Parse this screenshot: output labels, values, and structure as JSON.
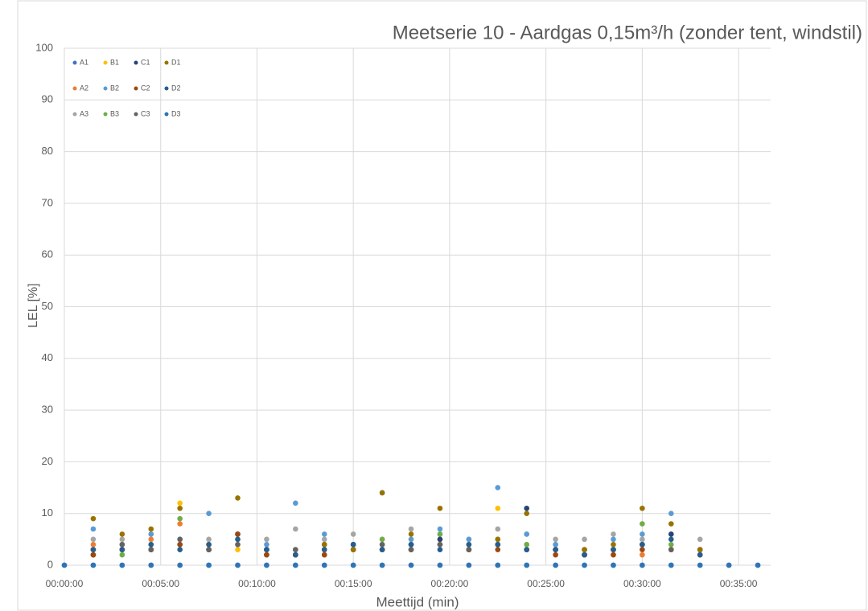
{
  "chart_data": {
    "type": "scatter",
    "title": "Meetserie 10 - Aardgas 0,15m³/h (zonder tent, windstil)",
    "x_label": "Meettijd (min)",
    "y_label": "LEL [%]",
    "x": [
      0,
      90,
      180,
      270,
      360,
      450,
      540,
      630,
      720,
      810,
      900,
      990,
      1080,
      1170,
      1260,
      1350,
      1440,
      1530,
      1620,
      1710,
      1800,
      1890,
      1980,
      2070,
      2160
    ],
    "xlim": [
      0,
      2200
    ],
    "xticks": [
      {
        "value": 0,
        "label": "00:00:00"
      },
      {
        "value": 300,
        "label": "00:05:00"
      },
      {
        "value": 600,
        "label": "00:10:00"
      },
      {
        "value": 900,
        "label": "00:15:00"
      },
      {
        "value": 1200,
        "label": "00:20:00"
      },
      {
        "value": 1500,
        "label": "00:25:00"
      },
      {
        "value": 1800,
        "label": "00:30:00"
      },
      {
        "value": 2100,
        "label": "00:35:00"
      }
    ],
    "ylim": [
      0,
      100
    ],
    "yticks": [
      0,
      10,
      20,
      30,
      40,
      50,
      60,
      70,
      80,
      90,
      100
    ],
    "grid": true,
    "legend": "upper left",
    "series": [
      {
        "name": "A1",
        "color": "#4472c4",
        "values": [
          0,
          0,
          0,
          0,
          0,
          0,
          0,
          0,
          0,
          0,
          0,
          0,
          0,
          0,
          0,
          0,
          0,
          0,
          0,
          0,
          0,
          0,
          0,
          0,
          0
        ]
      },
      {
        "name": "A2",
        "color": "#ed7d31",
        "values": [
          null,
          4,
          3,
          5,
          8,
          3,
          4,
          2,
          3,
          2,
          3,
          4,
          3,
          5,
          3,
          4,
          3,
          4,
          2,
          3,
          2,
          3,
          3,
          null,
          null
        ]
      },
      {
        "name": "A3",
        "color": "#a5a5a5",
        "values": [
          null,
          5,
          5,
          6,
          5,
          5,
          6,
          5,
          7,
          5,
          6,
          5,
          7,
          6,
          5,
          7,
          6,
          5,
          5,
          6,
          5,
          6,
          5,
          null,
          null
        ]
      },
      {
        "name": "B1",
        "color": "#ffc000",
        "values": [
          null,
          3,
          4,
          3,
          12,
          4,
          3,
          3,
          2,
          3,
          4,
          3,
          5,
          4,
          3,
          11,
          4,
          3,
          3,
          2,
          4,
          3,
          2,
          null,
          null
        ]
      },
      {
        "name": "B2",
        "color": "#5b9bd5",
        "values": [
          null,
          7,
          4,
          6,
          5,
          10,
          6,
          4,
          12,
          6,
          4,
          14,
          5,
          7,
          5,
          15,
          6,
          4,
          3,
          5,
          6,
          10,
          3,
          null,
          null
        ]
      },
      {
        "name": "B3",
        "color": "#70ad47",
        "values": [
          null,
          3,
          2,
          4,
          9,
          3,
          5,
          2,
          3,
          4,
          3,
          5,
          4,
          6,
          3,
          5,
          4,
          3,
          2,
          3,
          8,
          4,
          3,
          null,
          null
        ]
      },
      {
        "name": "C1",
        "color": "#264478",
        "values": [
          null,
          2,
          3,
          3,
          4,
          3,
          6,
          3,
          2,
          3,
          4,
          3,
          4,
          5,
          3,
          4,
          11,
          3,
          2,
          3,
          4,
          6,
          3,
          null,
          null
        ]
      },
      {
        "name": "C2",
        "color": "#9e480e",
        "values": [
          null,
          2,
          3,
          3,
          4,
          3,
          6,
          2,
          2,
          2,
          3,
          3,
          3,
          4,
          3,
          3,
          3,
          2,
          2,
          2,
          3,
          3,
          2,
          null,
          null
        ]
      },
      {
        "name": "C3",
        "color": "#636363",
        "values": [
          null,
          3,
          4,
          3,
          5,
          3,
          4,
          3,
          3,
          4,
          3,
          4,
          3,
          4,
          3,
          4,
          3,
          3,
          3,
          3,
          4,
          3,
          3,
          null,
          null
        ]
      },
      {
        "name": "D1",
        "color": "#997300",
        "values": [
          null,
          9,
          6,
          7,
          11,
          4,
          13,
          3,
          2,
          4,
          3,
          14,
          6,
          11,
          4,
          5,
          10,
          3,
          3,
          4,
          11,
          8,
          3,
          null,
          null
        ]
      },
      {
        "name": "D2",
        "color": "#255e91",
        "values": [
          null,
          3,
          3,
          4,
          3,
          4,
          5,
          3,
          2,
          3,
          4,
          3,
          4,
          3,
          4,
          4,
          3,
          3,
          2,
          3,
          4,
          5,
          2,
          null,
          null
        ]
      },
      {
        "name": "D3",
        "color": "#2e75b6",
        "values": [
          0,
          0,
          0,
          0,
          0,
          0,
          0,
          0,
          0,
          0,
          0,
          0,
          0,
          0,
          0,
          0,
          0,
          0,
          0,
          0,
          0,
          0,
          0,
          0,
          0
        ]
      }
    ]
  }
}
